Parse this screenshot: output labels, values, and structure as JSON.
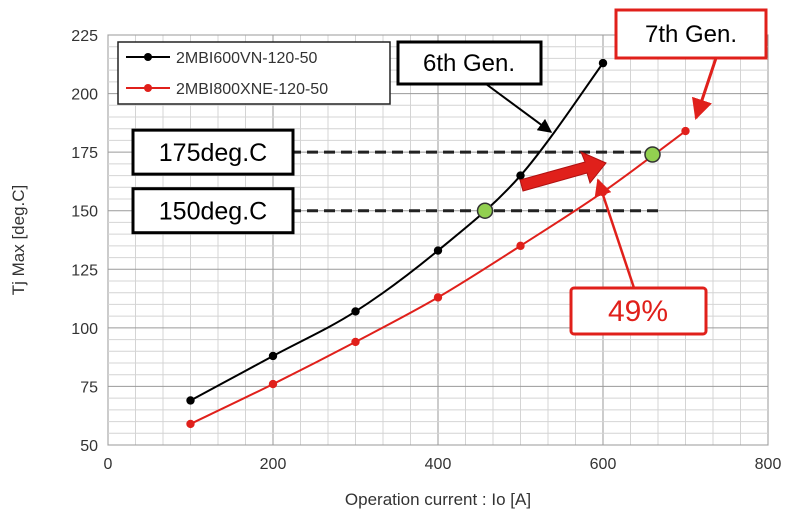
{
  "chart_data": {
    "type": "line",
    "xlabel": "Operation current : Io [A]",
    "ylabel": "Tj Max [deg.C]",
    "xlim": [
      0,
      800
    ],
    "ylim": [
      50,
      225
    ],
    "xticks": [
      0,
      200,
      400,
      600,
      800
    ],
    "yticks": [
      50,
      75,
      100,
      125,
      150,
      175,
      200,
      225
    ],
    "grid": true,
    "legend_position": "top-left",
    "series": [
      {
        "name": "2MBI600VN-120-50",
        "color": "#000000",
        "x": [
          100,
          200,
          300,
          400,
          500,
          600
        ],
        "y": [
          69,
          88,
          107,
          133,
          165,
          213
        ]
      },
      {
        "name": "2MBI800XNE-120-50",
        "color": "#e0201b",
        "x": [
          100,
          200,
          300,
          400,
          500,
          600,
          700
        ],
        "y": [
          59,
          76,
          94,
          113,
          135,
          158,
          184
        ]
      }
    ],
    "reference_lines": [
      {
        "y": 175,
        "label": "175deg.C"
      },
      {
        "y": 150,
        "label": "150deg.C"
      }
    ],
    "highlight_points": [
      {
        "x": 457,
        "y": 150
      },
      {
        "x": 660,
        "y": 174
      }
    ],
    "annotations": {
      "gen6": "6th Gen.",
      "gen7": "7th Gen.",
      "improvement": "49%"
    }
  }
}
